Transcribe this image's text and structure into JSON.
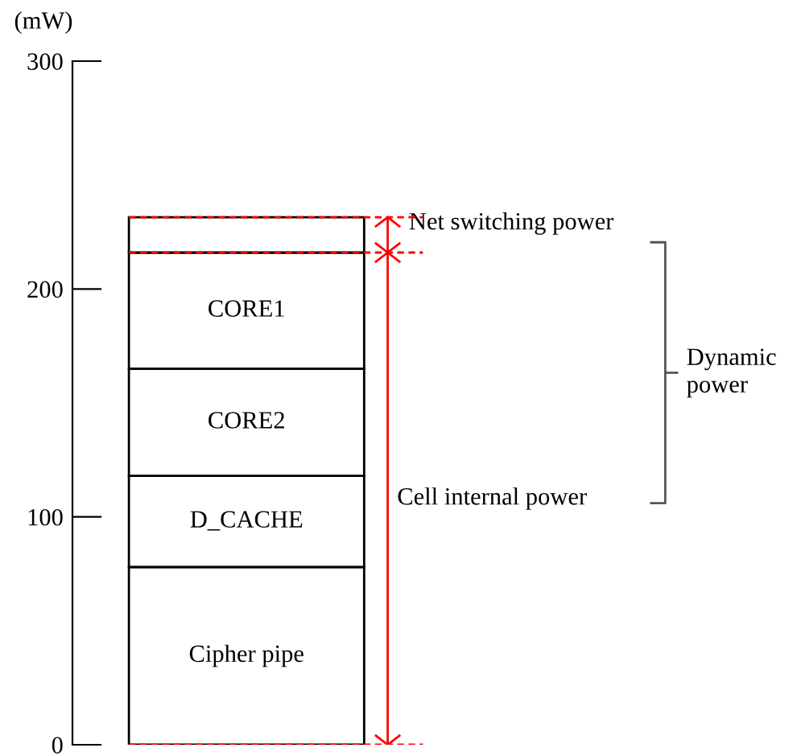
{
  "chart_data": {
    "type": "bar",
    "stacked": true,
    "ylabel": "(mW)",
    "categories": [
      null
    ],
    "series": [
      {
        "name": "Cipher pipe",
        "color": "#ffffff",
        "values": [
          78
        ]
      },
      {
        "name": "D_CACHE",
        "color": "#ffffff",
        "values": [
          40
        ]
      },
      {
        "name": "CORE2",
        "color": "#ffffff",
        "values": [
          47
        ]
      },
      {
        "name": "CORE1",
        "color": "#ffffff",
        "values": [
          51
        ]
      },
      {
        "name": "Net switching power",
        "color": "#ffffff",
        "values": [
          15.5
        ]
      }
    ],
    "ylim": [
      0,
      300
    ],
    "yticks": [
      0,
      100,
      200,
      300
    ],
    "grid": false,
    "legend": false,
    "ref_lines": [
      {
        "axis": "y",
        "value": 0,
        "color": "#ff0000",
        "line_style": "dashed"
      },
      {
        "axis": "y",
        "value": 216,
        "color": "#ff0000",
        "line_style": "dashed"
      },
      {
        "axis": "y",
        "value": 231.5,
        "color": "#ff0000",
        "line_style": "dashed"
      }
    ],
    "annotations": [
      "Cell internal power",
      "Dynamic power"
    ]
  }
}
